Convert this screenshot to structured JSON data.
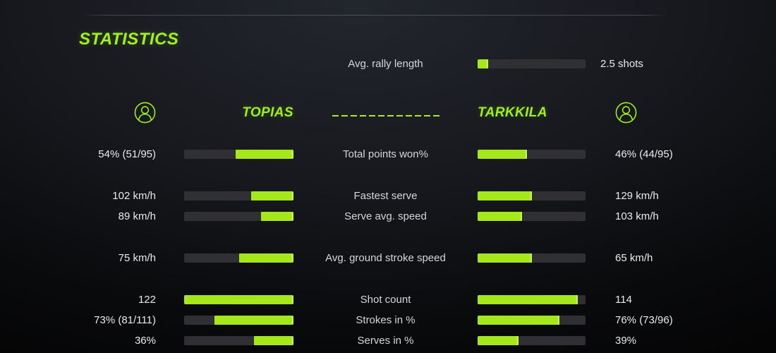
{
  "colors": {
    "accent": "#9ef01f",
    "bar-fill": "#a4e81c",
    "bar-fill-edge": "#d6fa6a",
    "bar-track": "#303034",
    "value-text": "#e9ebeb",
    "label-text": "#d4d7d7"
  },
  "chart_data": {
    "type": "bar",
    "title": "STATISTICS",
    "legend_position": "header",
    "grid": false,
    "players": [
      "TOPIAS",
      "TARKKILA"
    ],
    "categories": [
      "Total points won%",
      "Fastest serve",
      "Serve avg. speed",
      "Avg. ground stroke speed",
      "Shot count",
      "Strokes in %",
      "Serves in %"
    ],
    "series": [
      {
        "name": "TOPIAS",
        "values": [
          54,
          102,
          89,
          75,
          122,
          73,
          36
        ],
        "display": [
          "54% (51/95)",
          "102 km/h",
          "89 km/h",
          "75 km/h",
          "122",
          "73% (81/111)",
          "36%"
        ],
        "fills": [
          0.53,
          0.39,
          0.3,
          0.5,
          1.0,
          0.72,
          0.36
        ]
      },
      {
        "name": "TARKKILA",
        "values": [
          46,
          129,
          103,
          65,
          114,
          76,
          39
        ],
        "display": [
          "46% (44/95)",
          "129 km/h",
          "103 km/h",
          "65 km/h",
          "114",
          "76% (73/96)",
          "39%"
        ],
        "fills": [
          0.46,
          0.5,
          0.41,
          0.5,
          0.93,
          0.76,
          0.38
        ]
      }
    ],
    "rally": {
      "label": "Avg. rally length",
      "value": 2.5,
      "display": "2.5 shots",
      "fill": 0.1
    }
  }
}
